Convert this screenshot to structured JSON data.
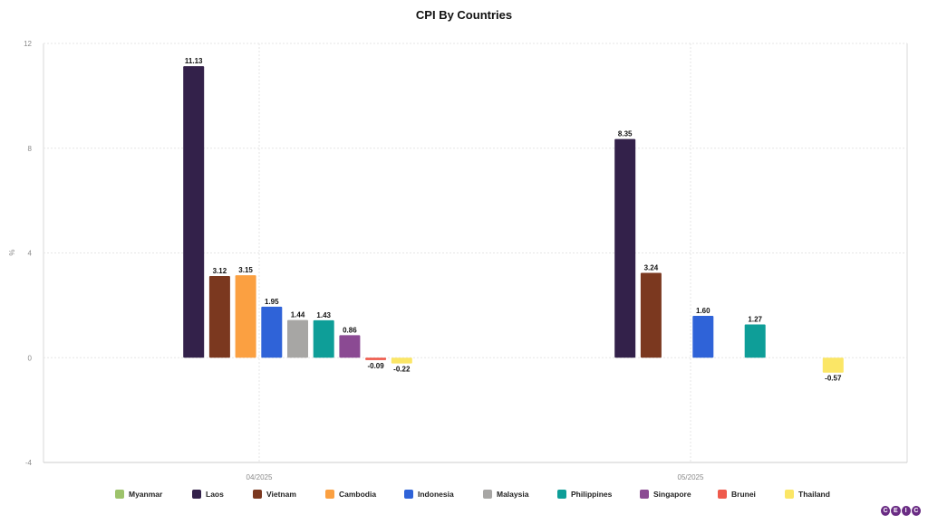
{
  "chart_data": {
    "type": "bar",
    "title": "CPI By Countries",
    "ylabel": "%",
    "xlabel": "",
    "ylim": [
      -4,
      12
    ],
    "yticks": [
      -4,
      0,
      4,
      8,
      12
    ],
    "grid": true,
    "legend_position": "bottom",
    "categories": [
      "04/2025",
      "05/2025"
    ],
    "series": [
      {
        "name": "Myanmar",
        "color": "#9dc36b",
        "values": [
          null,
          null
        ]
      },
      {
        "name": "Laos",
        "color": "#33214a",
        "values": [
          11.13,
          8.35
        ]
      },
      {
        "name": "Vietnam",
        "color": "#7b381f",
        "values": [
          3.12,
          3.24
        ]
      },
      {
        "name": "Cambodia",
        "color": "#fba041",
        "values": [
          3.15,
          null
        ]
      },
      {
        "name": "Indonesia",
        "color": "#2f63d8",
        "values": [
          1.95,
          1.6
        ]
      },
      {
        "name": "Malaysia",
        "color": "#a7a6a4",
        "values": [
          1.44,
          null
        ]
      },
      {
        "name": "Philippines",
        "color": "#0e9e98",
        "values": [
          1.43,
          1.27
        ]
      },
      {
        "name": "Singapore",
        "color": "#8b4a93",
        "values": [
          0.86,
          null
        ]
      },
      {
        "name": "Brunei",
        "color": "#ef5a4c",
        "values": [
          -0.09,
          null
        ]
      },
      {
        "name": "Thailand",
        "color": "#fbe666",
        "values": [
          -0.22,
          -0.57
        ]
      }
    ],
    "data_labels": [
      [
        "",
        "11.13",
        "3.12",
        "3.15",
        "1.95",
        "1.44",
        "1.43",
        "0.86",
        "-0.09",
        "-0.22"
      ],
      [
        "",
        "8.35",
        "3.24",
        "",
        "1.60",
        "",
        "1.27",
        "",
        "",
        "-0.57"
      ]
    ]
  },
  "brand": {
    "logo_letters": [
      "C",
      "E",
      "I",
      "C"
    ]
  }
}
